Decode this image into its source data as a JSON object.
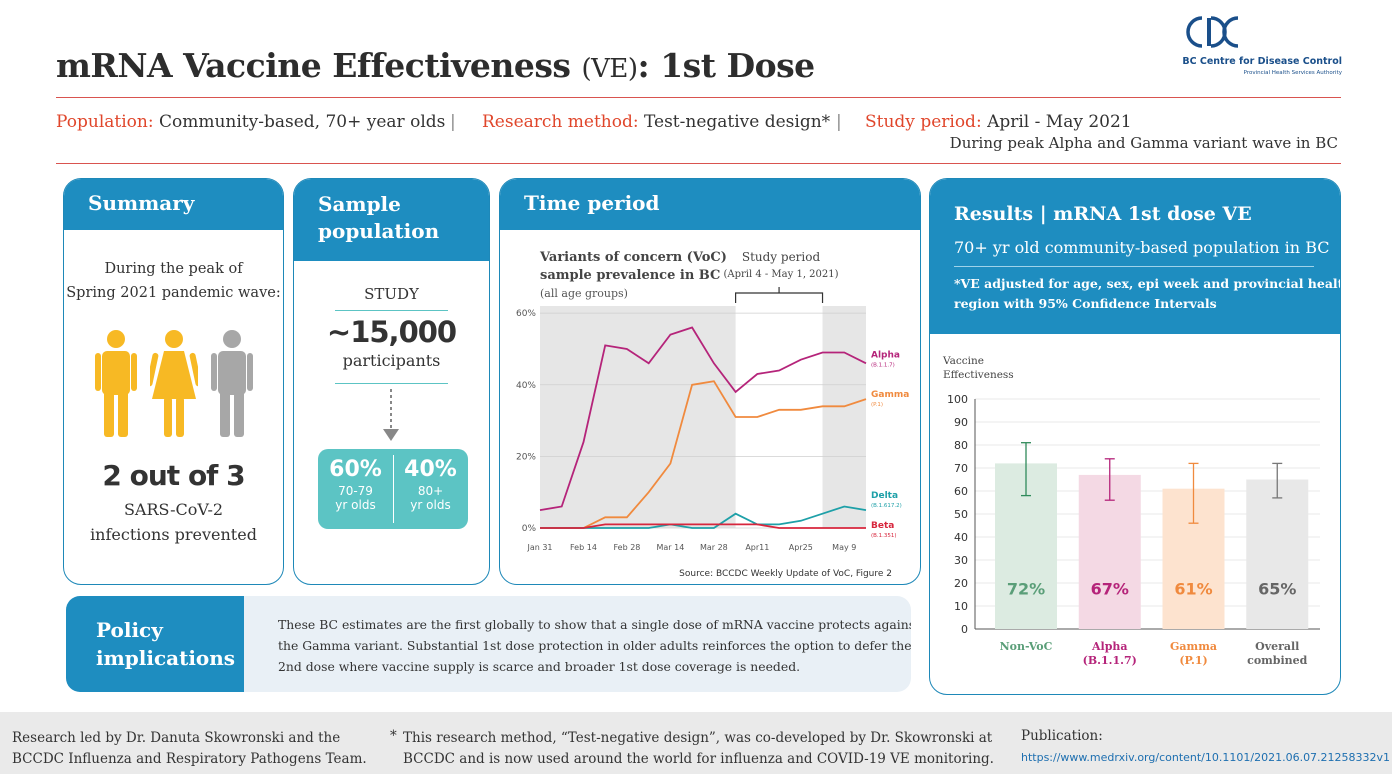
{
  "header": {
    "title_main": "mRNA Vaccine Effectiveness",
    "title_ve": "(VE)",
    "title_tail": ": 1st Dose",
    "logo_text": "BC Centre for Disease Control",
    "logo_sub": "Provincial Health Services Authority",
    "population_key": "Population:",
    "population_val": "Community-based, 70+ year olds",
    "method_key": "Research method:",
    "method_val": "Test-negative design*",
    "period_key": "Study period:",
    "period_val": "April - May 2021",
    "period_note": "During peak Alpha and Gamma variant wave in BC",
    "sep": "|"
  },
  "summary": {
    "heading": "Summary",
    "intro_line1": "During the peak of",
    "intro_line2": "Spring 2021 pandemic wave:",
    "big": "2 out of 3",
    "line1": "SARS-CoV-2",
    "line2": "infections prevented",
    "colors": {
      "yellow": "#f7b924",
      "grey": "#a7a7a7"
    }
  },
  "sample": {
    "heading_line1": "Sample",
    "heading_line2": "population",
    "study": "STUDY",
    "count": "~15,000",
    "participants": "participants",
    "split": [
      {
        "pct": "60%",
        "l1": "70-79",
        "l2": "yr olds"
      },
      {
        "pct": "40%",
        "l1": "80+",
        "l2": "yr olds"
      }
    ]
  },
  "time": {
    "heading": "Time period",
    "source": "Source: BCCDC Weekly Update of VoC, Figure 2"
  },
  "results": {
    "heading": "Results | mRNA 1st dose VE",
    "subheading": "70+ yr old community-based population in BC",
    "note_line1": "*VE adjusted for age, sex, epi week and provincial health",
    "note_line2": "region with 95% Confidence Intervals"
  },
  "policy": {
    "heading_line1": "Policy",
    "heading_line2": "implications",
    "text_line1": "These BC estimates are the first globally to show that a single dose of mRNA vaccine protects against",
    "text_line2": "the Gamma variant. Substantial 1st dose protection in older adults reinforces the option to defer the",
    "text_line3": "2nd dose where vaccine supply is scarce and broader 1st dose coverage is needed."
  },
  "footer": {
    "lead_line1": "Research led by Dr. Danuta Skowronski and the",
    "lead_line2": "BCCDC Influenza and Respiratory Pathogens Team.",
    "star": "*",
    "note_line1": "This research method, “Test-negative design”,  was co-developed by Dr. Skowronski at",
    "note_line2": "BCCDC and is now used around the world for influenza and COVID-19 VE monitoring.",
    "pub_label": "Publication:",
    "pub_link": "https://www.medrxiv.org/content/10.1101/2021.06.07.21258332v1"
  },
  "chart_data": [
    {
      "type": "line",
      "title_line1": "Variants of concern (VoC)",
      "title_line2": "sample prevalence in BC",
      "subtitle": "(all age groups)",
      "annotation_line1": "Study period",
      "annotation_line2": "(April 4 - May 1, 2021)",
      "x": [
        "Jan 31",
        "Feb 7",
        "Feb 14",
        "Feb 21",
        "Feb 28",
        "Mar 7",
        "Mar 14",
        "Mar 21",
        "Mar 28",
        "Apr 4",
        "Apr 11",
        "Apr 18",
        "Apr 25",
        "May 2",
        "May 9",
        "May 16"
      ],
      "x_tick_labels": [
        "Jan 31",
        "Feb 14",
        "Feb 28",
        "Mar 14",
        "Mar 28",
        "Apr11",
        "Apr25",
        "May 9"
      ],
      "y_tick_labels": [
        "0%",
        "20%",
        "40%",
        "60%"
      ],
      "ylim": [
        0,
        62
      ],
      "series": [
        {
          "name": "Alpha",
          "variant": "(B.1.1.7)",
          "color": "#b5247a",
          "values": [
            5,
            6,
            24,
            51,
            50,
            46,
            54,
            56,
            46,
            38,
            43,
            44,
            47,
            49,
            49,
            46
          ]
        },
        {
          "name": "Gamma",
          "variant": "(P.1)",
          "color": "#f08a3e",
          "values": [
            0,
            0,
            0,
            3,
            3,
            10,
            18,
            40,
            41,
            31,
            31,
            33,
            33,
            34,
            34,
            36
          ]
        },
        {
          "name": "Delta",
          "variant": "(B.1.617.2)",
          "color": "#1ea0a8",
          "values": [
            0,
            0,
            0,
            0,
            0,
            0,
            1,
            0,
            0,
            4,
            1,
            1,
            2,
            4,
            6,
            5
          ]
        },
        {
          "name": "Beta",
          "variant": "(B.1.351)",
          "color": "#d7263d",
          "values": [
            0,
            0,
            0,
            1,
            1,
            1,
            1,
            1,
            1,
            1,
            1,
            0,
            0,
            0,
            0,
            0
          ]
        }
      ]
    },
    {
      "type": "bar",
      "ylabel_line1": "Vaccine",
      "ylabel_line2": "Effectiveness",
      "ylim": [
        0,
        100
      ],
      "y_ticks": [
        0,
        10,
        20,
        30,
        40,
        50,
        60,
        70,
        80,
        90,
        100
      ],
      "categories": [
        {
          "l1": "Non-VoC",
          "l2": "",
          "color": "#dcebe1",
          "label_color": "#5a9e78",
          "err_color": "#2f8a5a"
        },
        {
          "l1": "Alpha",
          "l2": "(B.1.1.7)",
          "color": "#f4d9e4",
          "label_color": "#b5247a",
          "err_color": "#b5247a"
        },
        {
          "l1": "Gamma",
          "l2": "(P.1)",
          "color": "#fde3cf",
          "label_color": "#f08a3e",
          "err_color": "#f08a3e"
        },
        {
          "l1": "Overall",
          "l2": "combined",
          "color": "#e8e8e8",
          "label_color": "#666666",
          "err_color": "#777777"
        }
      ],
      "values": [
        72,
        67,
        61,
        65
      ],
      "ci_low": [
        58,
        56,
        46,
        57
      ],
      "ci_high": [
        81,
        74,
        72,
        72
      ],
      "value_labels": [
        "72%",
        "67%",
        "61%",
        "65%"
      ]
    }
  ]
}
